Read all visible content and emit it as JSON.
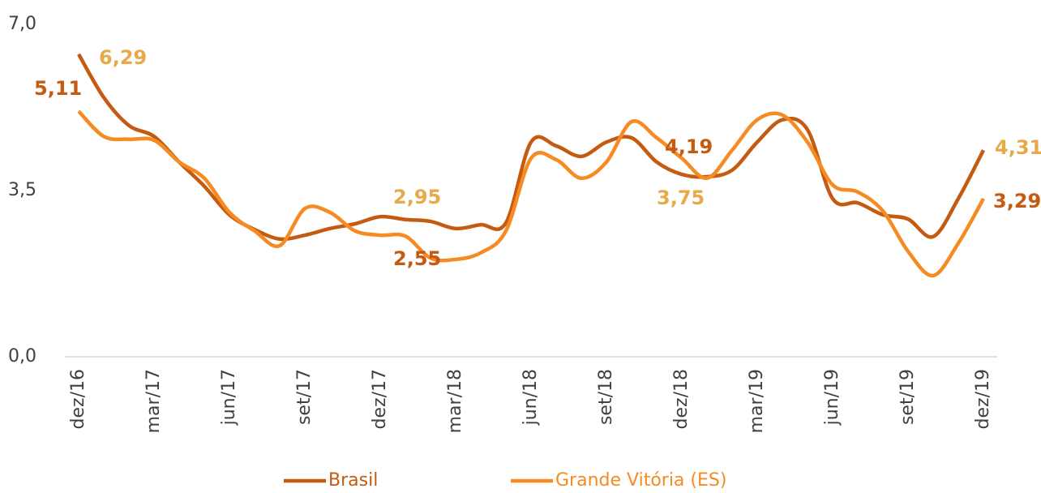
{
  "chart_data": {
    "type": "line",
    "categories": [
      "dez/16",
      null,
      null,
      "mar/17",
      null,
      null,
      "jun/17",
      null,
      null,
      "set/17",
      null,
      null,
      "dez/17",
      null,
      null,
      "mar/18",
      null,
      null,
      "jun/18",
      null,
      null,
      "set/18",
      null,
      null,
      "dez/18",
      null,
      null,
      "mar/19",
      null,
      null,
      "jun/19",
      null,
      null,
      "set/19",
      null,
      null,
      "dez/19"
    ],
    "series": [
      {
        "name": "Brasil",
        "color": "#c55a11",
        "values": [
          6.37,
          5.46,
          4.87,
          4.64,
          4.1,
          3.59,
          2.99,
          2.68,
          2.48,
          2.56,
          2.7,
          2.8,
          2.95,
          2.89,
          2.85,
          2.7,
          2.78,
          2.82,
          4.52,
          4.44,
          4.22,
          4.52,
          4.61,
          4.1,
          3.84,
          3.79,
          3.93,
          4.52,
          4.99,
          4.78,
          3.33,
          3.24,
          2.99,
          2.9,
          2.53,
          3.33,
          4.35
        ]
      },
      {
        "name": "Grande Vitória (ES)",
        "color": "#f58b22",
        "values": [
          5.17,
          4.64,
          4.58,
          4.56,
          4.1,
          3.76,
          3.04,
          2.65,
          2.34,
          3.12,
          3.04,
          2.65,
          2.56,
          2.54,
          2.08,
          2.05,
          2.19,
          2.65,
          4.18,
          4.15,
          3.76,
          4.1,
          4.95,
          4.61,
          4.18,
          3.76,
          4.35,
          4.99,
          5.09,
          4.52,
          3.62,
          3.47,
          3.07,
          2.22,
          1.71,
          2.39,
          3.33
        ]
      }
    ],
    "annotations": [
      {
        "text": "5,11",
        "color": "#c55a11"
      },
      {
        "text": "6,29",
        "color": "#e8a94a"
      },
      {
        "text": "2,95",
        "color": "#e8a94a"
      },
      {
        "text": "2,55",
        "color": "#c55a11"
      },
      {
        "text": "4,19",
        "color": "#c55a11"
      },
      {
        "text": "3,75",
        "color": "#e8a94a"
      },
      {
        "text": "4,31",
        "color": "#e8a94a"
      },
      {
        "text": "3,29",
        "color": "#c55a11"
      }
    ],
    "ylim": [
      0,
      7
    ],
    "yticks": [
      {
        "value": 0,
        "label": "0,0"
      },
      {
        "value": 3.5,
        "label": "3,5"
      },
      {
        "value": 7,
        "label": "7,0"
      }
    ]
  }
}
